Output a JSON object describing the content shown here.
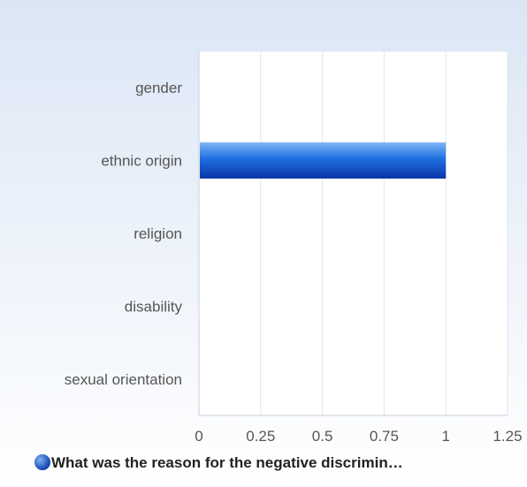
{
  "chart_data": {
    "type": "bar",
    "orientation": "horizontal",
    "categories": [
      "gender",
      "ethnic origin",
      "religion",
      "disability",
      "sexual orientation"
    ],
    "series": [
      {
        "name": "What was the reason for the negative discrimin…",
        "values": [
          0,
          1,
          0,
          0,
          0
        ]
      }
    ],
    "xlim": [
      0,
      1.25
    ],
    "x_ticks": [
      "0",
      "0.25",
      "0.5",
      "0.75",
      "1",
      "1.25"
    ],
    "grid": true,
    "legend_position": "bottom",
    "xlabel": "",
    "ylabel": ""
  },
  "colors": {
    "bar_top": "#7fb5f5",
    "bar_mid": "#1f6fe0",
    "bar_dark": "#0a35a8",
    "background_top": "#dbe6f5",
    "background_bottom": "#ffffff",
    "plot_background": "#ffffff",
    "grid_line": "#e2e6ee",
    "axis_line": "#c8cfda",
    "tick_text": "#555555",
    "legend_text": "#222222"
  }
}
